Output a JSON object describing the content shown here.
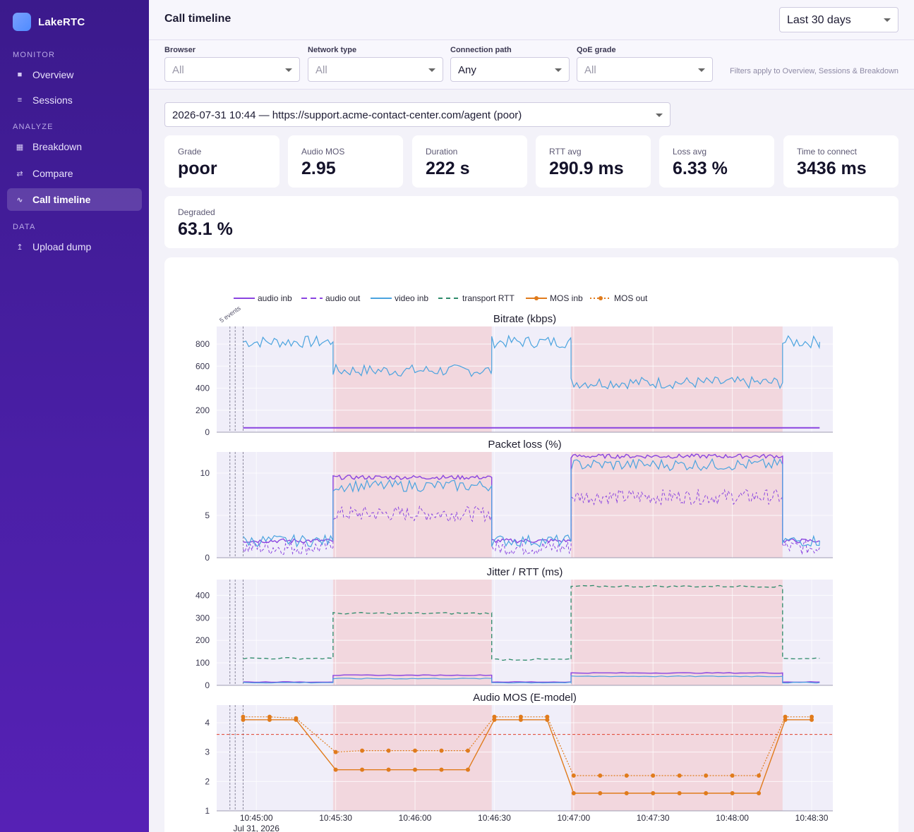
{
  "app": {
    "name": "LakeRTC"
  },
  "sidebar": {
    "sections": [
      {
        "label": "MONITOR",
        "items": [
          {
            "label": "Overview",
            "icon": "grid-icon"
          },
          {
            "label": "Sessions",
            "icon": "list-icon"
          }
        ]
      },
      {
        "label": "ANALYZE",
        "items": [
          {
            "label": "Breakdown",
            "icon": "table-icon"
          },
          {
            "label": "Compare",
            "icon": "swap-icon"
          },
          {
            "label": "Call timeline",
            "icon": "wave-icon",
            "active": true
          }
        ]
      },
      {
        "label": "DATA",
        "items": [
          {
            "label": "Upload dump",
            "icon": "upload-icon"
          }
        ]
      }
    ]
  },
  "header": {
    "title": "Call timeline",
    "range": "Last 30 days"
  },
  "filters": {
    "browser": {
      "label": "Browser",
      "value": "All"
    },
    "network": {
      "label": "Network type",
      "value": "All"
    },
    "path": {
      "label": "Connection path",
      "value": "Any"
    },
    "qoe": {
      "label": "QoE grade",
      "value": "All"
    },
    "note": "Filters apply to Overview, Sessions & Breakdown"
  },
  "session": {
    "selected": "2026-07-31 10:44 — https://support.acme-contact-center.com/agent (poor)"
  },
  "kpis": [
    {
      "label": "Grade",
      "value": "poor"
    },
    {
      "label": "Audio MOS",
      "value": "2.95"
    },
    {
      "label": "Duration",
      "value": "222 s"
    },
    {
      "label": "RTT avg",
      "value": "290.9 ms"
    },
    {
      "label": "Loss avg",
      "value": "6.33 %"
    },
    {
      "label": "Time to connect",
      "value": "3436 ms"
    },
    {
      "label": "Degraded",
      "value": "63.1 %"
    }
  ],
  "chart_data": {
    "type": "line",
    "legend": [
      "audio inb",
      "audio out",
      "video inb",
      "transport RTT",
      "MOS inb",
      "MOS out"
    ],
    "legend_placement": "top",
    "colors": {
      "audio": "#8a44e0",
      "video": "#4aa3df",
      "rtt": "#2e8b6a",
      "mos": "#e07b1c",
      "degraded_band": "#f2d7de",
      "threshold": "#e0402a"
    },
    "event_annotation": "5 events",
    "events_at": [
      "10:44:50",
      "10:44:52",
      "10:44:55"
    ],
    "x_ticks": [
      "10:45:00",
      "10:45:30",
      "10:46:00",
      "10:46:30",
      "10:47:00",
      "10:47:30",
      "10:48:00",
      "10:48:30"
    ],
    "x_tick_sublabel": "Jul 31, 2026",
    "x_range": [
      "10:44:45",
      "10:48:38"
    ],
    "degraded_windows": [
      [
        "10:45:29",
        "10:46:29"
      ],
      [
        "10:46:59",
        "10:48:19"
      ]
    ],
    "panels": [
      {
        "title": "Bitrate (kbps)",
        "ylim": [
          0,
          960
        ],
        "yticks": [
          0,
          200,
          400,
          600,
          800
        ],
        "segments": [
          {
            "from": "10:44:55",
            "to": "10:45:29",
            "video_inb": 820,
            "audio_inb": 40
          },
          {
            "from": "10:45:29",
            "to": "10:46:29",
            "video_inb": 560,
            "audio_inb": 40
          },
          {
            "from": "10:46:29",
            "to": "10:46:59",
            "video_inb": 820,
            "audio_inb": 40
          },
          {
            "from": "10:46:59",
            "to": "10:48:19",
            "video_inb": 450,
            "audio_inb": 40
          },
          {
            "from": "10:48:19",
            "to": "10:48:33",
            "video_inb": 820,
            "audio_inb": 40
          }
        ]
      },
      {
        "title": "Packet loss (%)",
        "ylim": [
          0,
          12.5
        ],
        "yticks": [
          0,
          5,
          10
        ],
        "segments": [
          {
            "from": "10:44:55",
            "to": "10:45:29",
            "audio_inb": 2,
            "video_inb": 2,
            "audio_out": 1.2
          },
          {
            "from": "10:45:29",
            "to": "10:46:29",
            "audio_inb": 9.5,
            "video_inb": 8.5,
            "audio_out": 5.2
          },
          {
            "from": "10:46:29",
            "to": "10:46:59",
            "audio_inb": 2,
            "video_inb": 2,
            "audio_out": 1.2
          },
          {
            "from": "10:46:59",
            "to": "10:48:19",
            "audio_inb": 12,
            "video_inb": 11,
            "audio_out": 7.2
          },
          {
            "from": "10:48:19",
            "to": "10:48:33",
            "audio_inb": 2,
            "video_inb": 2,
            "audio_out": 1.2
          }
        ]
      },
      {
        "title": "Jitter / RTT (ms)",
        "ylim": [
          0,
          470
        ],
        "yticks": [
          0,
          100,
          200,
          300,
          400
        ],
        "segments": [
          {
            "from": "10:44:55",
            "to": "10:45:29",
            "transport_rtt": 120,
            "audio_inb": 15,
            "video_inb": 12
          },
          {
            "from": "10:45:29",
            "to": "10:46:29",
            "transport_rtt": 320,
            "audio_inb": 45,
            "video_inb": 30
          },
          {
            "from": "10:46:29",
            "to": "10:46:59",
            "transport_rtt": 115,
            "audio_inb": 15,
            "video_inb": 12
          },
          {
            "from": "10:46:59",
            "to": "10:48:19",
            "transport_rtt": 440,
            "audio_inb": 55,
            "video_inb": 40
          },
          {
            "from": "10:48:19",
            "to": "10:48:33",
            "transport_rtt": 120,
            "audio_inb": 15,
            "video_inb": 12
          }
        ]
      },
      {
        "title": "Audio MOS (E-model)",
        "ylim": [
          1,
          4.6
        ],
        "yticks": [
          1,
          2,
          3,
          4
        ],
        "threshold": 3.6,
        "mos_x": [
          "10:44:55",
          "10:45:05",
          "10:45:15",
          "10:45:30",
          "10:45:40",
          "10:45:50",
          "10:46:00",
          "10:46:10",
          "10:46:20",
          "10:46:30",
          "10:46:40",
          "10:46:50",
          "10:47:00",
          "10:47:10",
          "10:47:20",
          "10:47:30",
          "10:47:40",
          "10:47:50",
          "10:48:00",
          "10:48:10",
          "10:48:20",
          "10:48:30"
        ],
        "mos_inb": [
          4.1,
          4.1,
          4.1,
          2.4,
          2.4,
          2.4,
          2.4,
          2.4,
          2.4,
          4.1,
          4.1,
          4.1,
          1.6,
          1.6,
          1.6,
          1.6,
          1.6,
          1.6,
          1.6,
          1.6,
          4.1,
          4.1
        ],
        "mos_out": [
          4.2,
          4.2,
          4.15,
          3.0,
          3.05,
          3.05,
          3.05,
          3.05,
          3.05,
          4.2,
          4.2,
          4.2,
          2.2,
          2.2,
          2.2,
          2.2,
          2.2,
          2.2,
          2.2,
          2.2,
          4.2,
          4.2
        ]
      }
    ]
  }
}
